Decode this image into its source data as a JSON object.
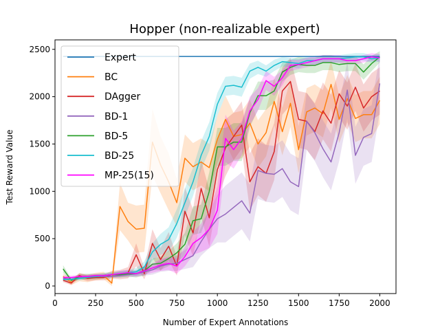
{
  "chart_data": {
    "type": "line",
    "title": "Hopper (non-realizable expert)",
    "xlabel": "Number of Expert Annotations",
    "ylabel": "Test Reward Value",
    "xlim": [
      0,
      2100
    ],
    "ylim": [
      -80,
      2600
    ],
    "xticks": [
      0,
      250,
      500,
      750,
      1000,
      1250,
      1500,
      1750,
      2000
    ],
    "yticks": [
      0,
      500,
      1000,
      1500,
      2000,
      2500
    ],
    "grid": false,
    "legend_position": "upper-left",
    "x": [
      50,
      100,
      150,
      200,
      250,
      300,
      350,
      400,
      450,
      500,
      550,
      600,
      650,
      700,
      750,
      800,
      850,
      900,
      950,
      1000,
      1050,
      1100,
      1150,
      1200,
      1250,
      1300,
      1350,
      1400,
      1450,
      1500,
      1550,
      1600,
      1650,
      1700,
      1750,
      1800,
      1850,
      1900,
      1950,
      2000
    ],
    "series": [
      {
        "name": "Expert",
        "color": "#1f77b4",
        "values": [
          2425,
          2425,
          2425,
          2425,
          2425,
          2425,
          2425,
          2425,
          2425,
          2425,
          2425,
          2425,
          2425,
          2425,
          2425,
          2425,
          2425,
          2425,
          2425,
          2425,
          2425,
          2425,
          2425,
          2425,
          2425,
          2425,
          2425,
          2425,
          2425,
          2425,
          2425,
          2425,
          2425,
          2425,
          2425,
          2425,
          2425,
          2425,
          2425,
          2425
        ],
        "spread": [
          0,
          0,
          0,
          0,
          0,
          0,
          0,
          0,
          0,
          0,
          0,
          0,
          0,
          0,
          0,
          0,
          0,
          0,
          0,
          0,
          0,
          0,
          0,
          0,
          0,
          0,
          0,
          0,
          0,
          0,
          0,
          0,
          0,
          0,
          0,
          0,
          0,
          0,
          0,
          0
        ]
      },
      {
        "name": "BC",
        "color": "#ff7f0e",
        "values": [
          100,
          40,
          90,
          80,
          100,
          110,
          30,
          840,
          680,
          600,
          610,
          1520,
          1280,
          1100,
          880,
          1350,
          1260,
          1310,
          1250,
          1550,
          1760,
          1580,
          1600,
          1720,
          1500,
          1620,
          1950,
          1630,
          1930,
          1440,
          1840,
          1880,
          1820,
          2130,
          1760,
          1980,
          1770,
          1810,
          1810,
          1960
        ],
        "spread": [
          30,
          30,
          40,
          40,
          40,
          40,
          30,
          250,
          200,
          250,
          250,
          350,
          300,
          300,
          250,
          250,
          250,
          250,
          250,
          250,
          250,
          250,
          250,
          250,
          250,
          250,
          250,
          250,
          250,
          250,
          250,
          250,
          250,
          250,
          250,
          250,
          250,
          250,
          250,
          250
        ]
      },
      {
        "name": "DAgger",
        "color": "#d62728",
        "values": [
          60,
          30,
          110,
          80,
          90,
          90,
          120,
          120,
          140,
          330,
          130,
          450,
          280,
          420,
          210,
          790,
          560,
          1030,
          720,
          1230,
          1460,
          1580,
          1700,
          1100,
          1260,
          1190,
          1420,
          2060,
          2160,
          1760,
          1740,
          1630,
          1850,
          1720,
          2030,
          1900,
          2100,
          1880,
          2000,
          2060
        ],
        "spread": [
          20,
          20,
          30,
          30,
          30,
          30,
          40,
          50,
          60,
          120,
          60,
          150,
          120,
          150,
          100,
          250,
          250,
          300,
          300,
          300,
          300,
          250,
          250,
          300,
          300,
          300,
          300,
          250,
          250,
          300,
          300,
          300,
          300,
          300,
          250,
          250,
          250,
          250,
          250,
          250
        ]
      },
      {
        "name": "BD-1",
        "color": "#9467bd",
        "values": [
          80,
          70,
          90,
          100,
          100,
          100,
          100,
          110,
          120,
          130,
          150,
          170,
          210,
          230,
          240,
          280,
          320,
          470,
          600,
          710,
          760,
          830,
          900,
          770,
          1220,
          1190,
          1180,
          1240,
          1100,
          1050,
          1740,
          1620,
          1450,
          1310,
          1620,
          2070,
          1380,
          1570,
          1610,
          2140
        ],
        "spread": [
          20,
          20,
          20,
          20,
          20,
          20,
          20,
          20,
          30,
          30,
          40,
          50,
          60,
          70,
          80,
          100,
          120,
          150,
          200,
          250,
          300,
          300,
          300,
          300,
          300,
          300,
          300,
          300,
          300,
          300,
          300,
          300,
          300,
          300,
          300,
          300,
          300,
          300,
          300,
          300
        ]
      },
      {
        "name": "BD-5",
        "color": "#2ca02c",
        "values": [
          180,
          60,
          100,
          100,
          100,
          110,
          120,
          120,
          130,
          130,
          160,
          230,
          240,
          290,
          350,
          440,
          690,
          710,
          1000,
          1470,
          1470,
          1520,
          1520,
          1830,
          2010,
          2010,
          2060,
          2260,
          2310,
          2340,
          2330,
          2330,
          2360,
          2360,
          2340,
          2350,
          2350,
          2260,
          2350,
          2420
        ],
        "spread": [
          40,
          20,
          30,
          30,
          30,
          30,
          30,
          30,
          30,
          40,
          50,
          60,
          70,
          80,
          100,
          120,
          150,
          150,
          200,
          200,
          200,
          200,
          200,
          150,
          150,
          150,
          120,
          100,
          80,
          80,
          80,
          80,
          80,
          80,
          80,
          80,
          80,
          80,
          80,
          60
        ]
      },
      {
        "name": "BD-25",
        "color": "#17becf",
        "values": [
          70,
          70,
          80,
          90,
          100,
          110,
          120,
          130,
          140,
          150,
          200,
          360,
          440,
          490,
          660,
          880,
          1100,
          1380,
          1580,
          1920,
          2110,
          2120,
          2100,
          2270,
          2310,
          2270,
          2330,
          2370,
          2360,
          2350,
          2380,
          2380,
          2400,
          2400,
          2400,
          2410,
          2420,
          2420,
          2400,
          2410
        ],
        "spread": [
          20,
          20,
          20,
          20,
          20,
          20,
          20,
          30,
          30,
          40,
          60,
          90,
          110,
          130,
          150,
          150,
          150,
          150,
          150,
          120,
          100,
          100,
          100,
          80,
          70,
          60,
          60,
          50,
          50,
          50,
          40,
          40,
          40,
          40,
          40,
          40,
          40,
          40,
          40,
          40
        ]
      },
      {
        "name": "MP-25(15)",
        "color": "#ff00ff",
        "values": [
          90,
          90,
          100,
          100,
          110,
          110,
          120,
          130,
          140,
          130,
          160,
          190,
          220,
          240,
          210,
          310,
          450,
          510,
          600,
          800,
          1560,
          1440,
          1560,
          1850,
          1970,
          2170,
          2110,
          2200,
          2330,
          2340,
          2360,
          2380,
          2400,
          2400,
          2400,
          2380,
          2380,
          2400,
          2420,
          2410
        ],
        "spread": [
          20,
          20,
          20,
          20,
          20,
          20,
          20,
          30,
          30,
          30,
          40,
          50,
          60,
          70,
          80,
          100,
          120,
          150,
          200,
          250,
          250,
          200,
          180,
          150,
          120,
          100,
          100,
          80,
          60,
          50,
          50,
          50,
          40,
          40,
          40,
          40,
          40,
          40,
          40,
          40
        ]
      }
    ]
  }
}
